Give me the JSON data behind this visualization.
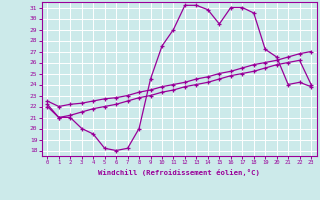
{
  "background_color": "#cceaea",
  "grid_color": "#ffffff",
  "line_color": "#990099",
  "xlabel": "Windchill (Refroidissement éolien,°C)",
  "xlim": [
    -0.5,
    23.5
  ],
  "ylim": [
    17.5,
    31.5
  ],
  "yticks": [
    18,
    19,
    20,
    21,
    22,
    23,
    24,
    25,
    26,
    27,
    28,
    29,
    30,
    31
  ],
  "xticks": [
    0,
    1,
    2,
    3,
    4,
    5,
    6,
    7,
    8,
    9,
    10,
    11,
    12,
    13,
    14,
    15,
    16,
    17,
    18,
    19,
    20,
    21,
    22,
    23
  ],
  "line1_x": [
    0,
    1,
    2,
    3,
    4,
    5,
    6,
    7,
    8,
    9,
    10,
    11,
    12,
    13,
    14,
    15,
    16,
    17,
    18,
    19,
    20,
    21,
    22,
    23
  ],
  "line1_y": [
    22.2,
    21.0,
    21.0,
    20.0,
    19.5,
    18.2,
    18.0,
    18.2,
    20.0,
    24.5,
    27.5,
    29.0,
    31.2,
    31.2,
    30.8,
    29.5,
    31.0,
    31.0,
    30.5,
    27.2,
    26.5,
    24.0,
    24.2,
    23.8
  ],
  "line2_x": [
    0,
    1,
    2,
    3,
    4,
    5,
    6,
    7,
    8,
    9,
    10,
    11,
    12,
    13,
    14,
    15,
    16,
    17,
    18,
    19,
    20,
    21,
    22,
    23
  ],
  "line2_y": [
    22.0,
    21.0,
    21.2,
    21.5,
    21.8,
    22.0,
    22.2,
    22.5,
    22.8,
    23.0,
    23.3,
    23.5,
    23.8,
    24.0,
    24.2,
    24.5,
    24.8,
    25.0,
    25.2,
    25.5,
    25.8,
    26.0,
    26.2,
    24.0
  ],
  "line3_x": [
    0,
    1,
    2,
    3,
    4,
    5,
    6,
    7,
    8,
    9,
    10,
    11,
    12,
    13,
    14,
    15,
    16,
    17,
    18,
    19,
    20,
    21,
    22,
    23
  ],
  "line3_y": [
    22.5,
    22.0,
    22.2,
    22.3,
    22.5,
    22.7,
    22.8,
    23.0,
    23.3,
    23.5,
    23.8,
    24.0,
    24.2,
    24.5,
    24.7,
    25.0,
    25.2,
    25.5,
    25.8,
    26.0,
    26.2,
    26.5,
    26.8,
    27.0
  ]
}
